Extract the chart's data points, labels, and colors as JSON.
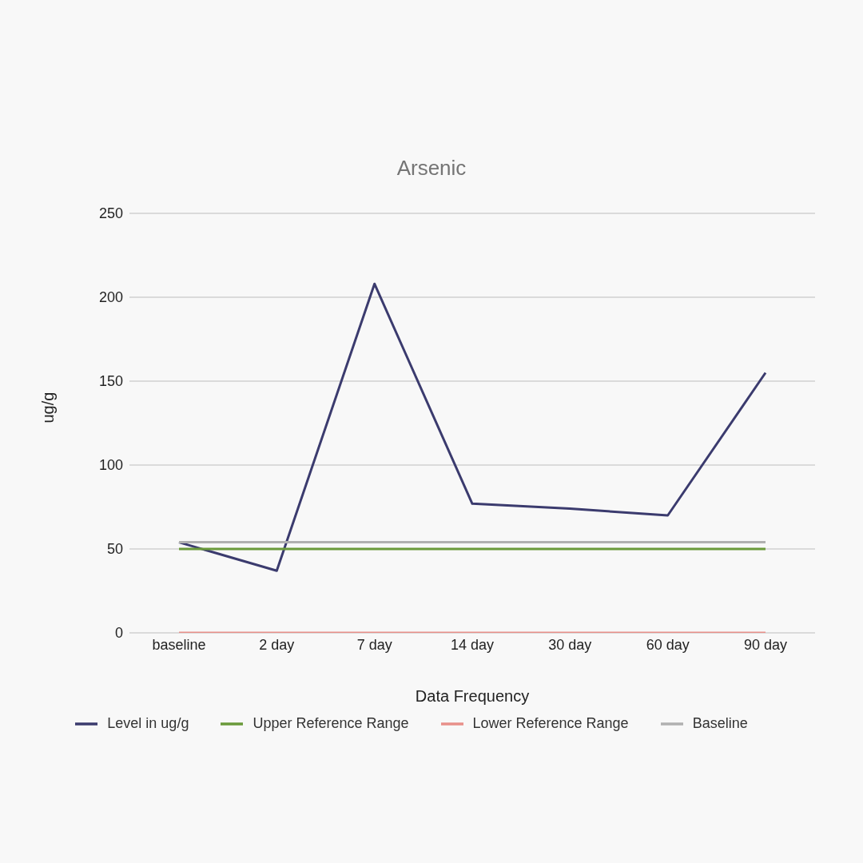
{
  "chart_data": {
    "type": "line",
    "title": "Arsenic",
    "xlabel": "Data Frequency",
    "ylabel": "ug/g",
    "categories": [
      "baseline",
      "2 day",
      "7 day",
      "14 day",
      "30 day",
      "60 day",
      "90 day"
    ],
    "series": [
      {
        "name": "Level in ug/g",
        "color": "#3b3b6e",
        "values": [
          54,
          37,
          208,
          77,
          74,
          70,
          155
        ]
      },
      {
        "name": "Upper Reference Range",
        "color": "#6a9a3a",
        "values": [
          50,
          50,
          50,
          50,
          50,
          50,
          50
        ]
      },
      {
        "name": "Lower Reference Range",
        "color": "#e8908a",
        "values": [
          0,
          0,
          0,
          0,
          0,
          0,
          0
        ]
      },
      {
        "name": "Baseline",
        "color": "#b0b0b0",
        "values": [
          54,
          54,
          54,
          54,
          54,
          54,
          54
        ]
      }
    ],
    "ylim": [
      0,
      250
    ],
    "yticks": [
      0,
      50,
      100,
      150,
      200,
      250
    ],
    "grid": "y",
    "legend": "bottom",
    "marker": "none",
    "line_style": "solid"
  }
}
